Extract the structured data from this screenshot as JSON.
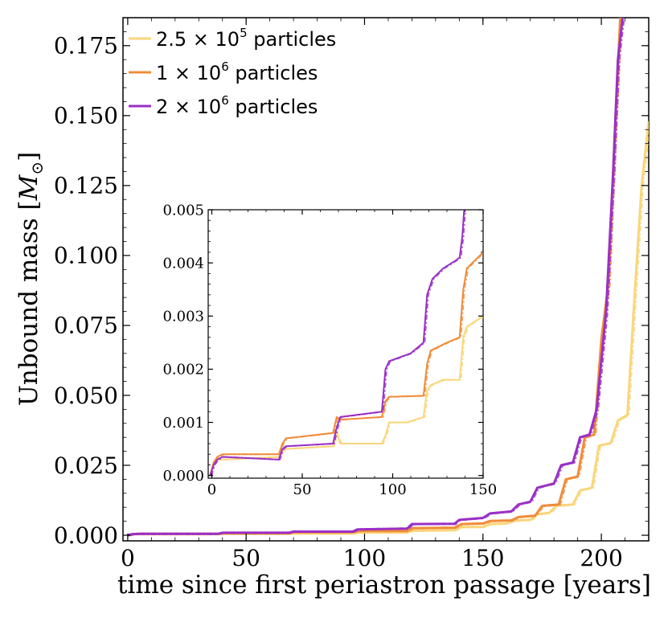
{
  "chart_data": [
    {
      "type": "line",
      "role": "main",
      "xlabel": "time since first periastron passage [years]",
      "ylabel": "Unbound mass [",
      "ylabel_symbol": "M",
      "ylabel_sub": "⊙",
      "ylabel_end": "]",
      "xlim": [
        -2,
        220
      ],
      "ylim": [
        -0.002,
        0.185
      ],
      "xticks": [
        0,
        50,
        100,
        150,
        200
      ],
      "xtick_labels": [
        "0",
        "50",
        "100",
        "150",
        "200"
      ],
      "yticks": [
        0.0,
        0.025,
        0.05,
        0.075,
        0.1,
        0.125,
        0.15,
        0.175
      ],
      "ytick_labels": [
        "0.000",
        "0.025",
        "0.050",
        "0.075",
        "0.100",
        "0.125",
        "0.150",
        "0.175"
      ],
      "legend_position": "top-left",
      "series": [
        {
          "name": "2.5 × 10⁵ particles",
          "legend_base": "2.5 × 10",
          "legend_exp": "5",
          "legend_suffix": " particles",
          "color": "#f9d67a",
          "x": [
            0,
            2,
            5,
            38,
            40,
            68,
            70,
            95,
            97,
            118,
            120,
            138,
            141,
            150,
            153,
            160,
            163,
            170,
            173,
            178,
            181,
            188,
            191,
            196,
            199,
            204,
            207,
            211,
            214,
            217,
            220
          ],
          "y": [
            0.0,
            0.0003,
            0.0004,
            0.0004,
            0.0005,
            0.0005,
            0.0006,
            0.0006,
            0.001,
            0.001,
            0.0016,
            0.0018,
            0.0029,
            0.003,
            0.004,
            0.0042,
            0.0052,
            0.0055,
            0.0075,
            0.008,
            0.0105,
            0.011,
            0.016,
            0.017,
            0.032,
            0.033,
            0.041,
            0.043,
            0.085,
            0.125,
            0.148
          ]
        },
        {
          "name": "1 × 10⁶ particles",
          "legend_base": "1 × 10",
          "legend_exp": "6",
          "legend_suffix": " particles",
          "color": "#f08c3a",
          "x": [
            0,
            2,
            5,
            38,
            40,
            68,
            70,
            95,
            97,
            118,
            120,
            138,
            141,
            150,
            153,
            162,
            165,
            172,
            175,
            182,
            185,
            190,
            193,
            197,
            200,
            203,
            206,
            208
          ],
          "y": [
            0.0,
            0.0004,
            0.0005,
            0.0005,
            0.0007,
            0.0007,
            0.0011,
            0.0011,
            0.0015,
            0.0015,
            0.0025,
            0.0027,
            0.004,
            0.0042,
            0.0051,
            0.0053,
            0.0065,
            0.007,
            0.0105,
            0.011,
            0.02,
            0.021,
            0.035,
            0.036,
            0.07,
            0.09,
            0.15,
            0.185
          ]
        },
        {
          "name": "2 × 10⁶ particles",
          "legend_base": "2 × 10",
          "legend_exp": "6",
          "legend_suffix": " particles",
          "color": "#9a30c6",
          "x": [
            0,
            2,
            5,
            38,
            40,
            68,
            70,
            95,
            97,
            118,
            120,
            138,
            140,
            150,
            153,
            162,
            165,
            170,
            173,
            180,
            183,
            188,
            191,
            195,
            198,
            202,
            205,
            207,
            209
          ],
          "y": [
            0.0,
            0.0004,
            0.0005,
            0.0005,
            0.0009,
            0.0009,
            0.0013,
            0.0013,
            0.0021,
            0.0024,
            0.004,
            0.0041,
            0.0055,
            0.0062,
            0.0078,
            0.0085,
            0.011,
            0.012,
            0.017,
            0.0185,
            0.025,
            0.026,
            0.035,
            0.036,
            0.045,
            0.08,
            0.13,
            0.17,
            0.185
          ]
        }
      ]
    },
    {
      "type": "line",
      "role": "inset",
      "xlim": [
        -2,
        150
      ],
      "ylim": [
        -5e-05,
        0.005
      ],
      "xticks": [
        0,
        50,
        100,
        150
      ],
      "xtick_labels": [
        "0",
        "50",
        "100",
        "150"
      ],
      "yticks": [
        0.0,
        0.001,
        0.002,
        0.003,
        0.004,
        0.005
      ],
      "ytick_labels": [
        "0.000",
        "0.001",
        "0.002",
        "0.003",
        "0.004",
        "0.005"
      ],
      "series": [
        {
          "name": "2.5 × 10⁵ particles",
          "color": "#f9d67a",
          "x": [
            -1,
            1,
            3,
            6,
            37,
            39,
            41,
            67,
            69,
            71,
            94,
            96,
            98,
            108,
            117,
            119,
            121,
            128,
            137,
            139,
            141,
            150
          ],
          "y": [
            0.0,
            0.0002,
            0.0003,
            0.0003,
            0.00035,
            0.00045,
            0.0005,
            0.00055,
            0.0008,
            0.0006,
            0.0006,
            0.00075,
            0.001,
            0.001,
            0.0011,
            0.0016,
            0.0017,
            0.0018,
            0.0018,
            0.0026,
            0.0028,
            0.003
          ]
        },
        {
          "name": "1 × 10⁶ particles",
          "color": "#f08c3a",
          "x": [
            -1,
            1,
            3,
            6,
            37,
            39,
            41,
            67,
            69,
            71,
            94,
            96,
            98,
            117,
            119,
            121,
            130,
            137,
            139,
            141,
            150
          ],
          "y": [
            0.0,
            0.00025,
            0.00035,
            0.0004,
            0.0004,
            0.0006,
            0.0007,
            0.0008,
            0.0011,
            0.00105,
            0.0011,
            0.0014,
            0.00148,
            0.0015,
            0.0021,
            0.00235,
            0.0025,
            0.0026,
            0.0035,
            0.0039,
            0.0042
          ]
        },
        {
          "name": "2 × 10⁶ particles",
          "color": "#9a30c6",
          "x": [
            -1,
            1,
            3,
            6,
            37,
            39,
            41,
            67,
            69,
            71,
            94,
            96,
            98,
            110,
            117,
            119,
            122,
            128,
            135,
            137,
            138.5,
            139.5
          ],
          "y": [
            0.0,
            0.0002,
            0.0003,
            0.00035,
            0.0003,
            0.0005,
            0.00055,
            0.0006,
            0.0009,
            0.0011,
            0.0012,
            0.002,
            0.00215,
            0.0023,
            0.0025,
            0.0034,
            0.0037,
            0.0039,
            0.00405,
            0.0041,
            0.0045,
            0.005
          ]
        }
      ]
    }
  ]
}
